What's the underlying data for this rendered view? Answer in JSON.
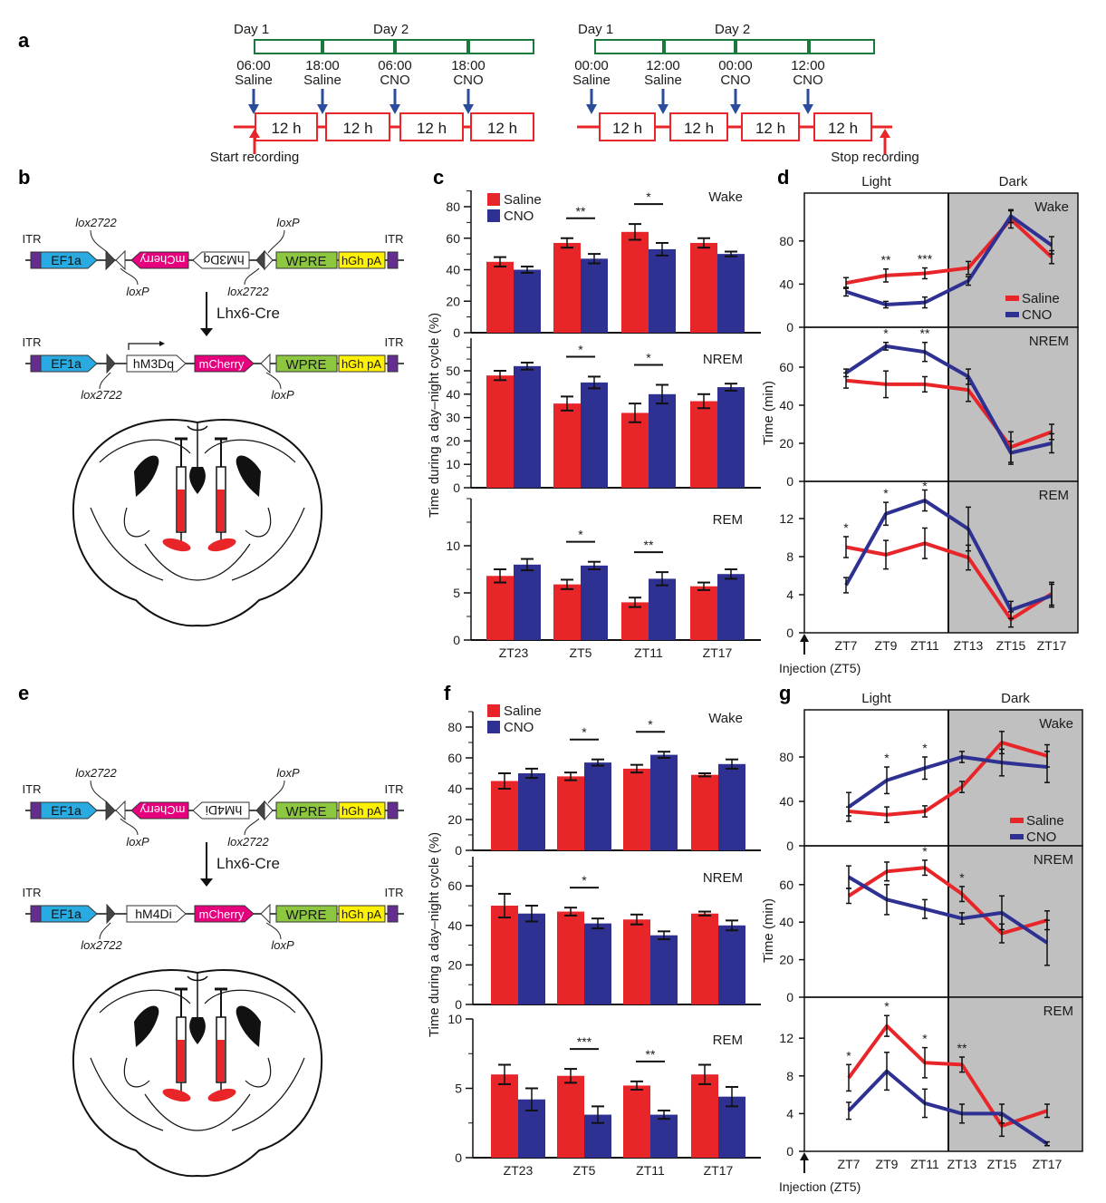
{
  "panel_letters": {
    "a": "a",
    "b": "b",
    "c": "c",
    "d": "d",
    "e": "e",
    "f": "f",
    "g": "g"
  },
  "colors": {
    "saline": "#e8262a",
    "cno": "#2e3192",
    "dark_phase": "#c0c0c0",
    "timeline_green": "#1a7a3c",
    "injection_arrow": "#2b4c9b",
    "recording": "#e8262a",
    "ef1a": "#29abe2",
    "mcherry": "#e6007e",
    "wpre": "#8dc63f",
    "hgh_pa": "#fff200",
    "itr": "#662d91"
  },
  "panel_a": {
    "left": {
      "days": [
        "Day 1",
        "Day 2"
      ],
      "injections": [
        {
          "time": "06:00",
          "drug": "Saline"
        },
        {
          "time": "18:00",
          "drug": "Saline"
        },
        {
          "time": "06:00",
          "drug": "CNO"
        },
        {
          "time": "18:00",
          "drug": "CNO"
        }
      ],
      "blocks": [
        "12 h",
        "12 h",
        "12 h",
        "12 h"
      ],
      "recording_label": "Start recording"
    },
    "right": {
      "days": [
        "Day 1",
        "Day 2"
      ],
      "injections": [
        {
          "time": "00:00",
          "drug": "Saline"
        },
        {
          "time": "12:00",
          "drug": "Saline"
        },
        {
          "time": "00:00",
          "drug": "CNO"
        },
        {
          "time": "12:00",
          "drug": "CNO"
        }
      ],
      "blocks": [
        "12 h",
        "12 h",
        "12 h",
        "12 h"
      ],
      "recording_label": "Stop recording"
    }
  },
  "panel_b": {
    "itr": "ITR",
    "ef1a": "EF1a",
    "mcherry": "mCherry",
    "receptor": "hM3Dq",
    "wpre": "WPRE",
    "hgh": "hGh pA",
    "lox2722": "lox2722",
    "loxp": "loxP",
    "cre": "Lhx6-Cre"
  },
  "panel_e": {
    "itr": "ITR",
    "ef1a": "EF1a",
    "mcherry": "mCherry",
    "receptor": "hM4Di",
    "wpre": "WPRE",
    "hgh": "hGh pA",
    "lox2722": "lox2722",
    "loxp": "loxP",
    "cre": "Lhx6-Cre"
  },
  "chart_data": [
    {
      "panel": "c",
      "type": "bar",
      "ylabel": "Time during a day–night cycle (%)",
      "categories": [
        "ZT23",
        "ZT5",
        "ZT11",
        "ZT17"
      ],
      "legend": [
        "Saline",
        "CNO"
      ],
      "legend_position": "top-left",
      "subpanels": [
        {
          "state": "Wake",
          "ylim": [
            0,
            90
          ],
          "yticks": [
            0,
            20,
            40,
            60,
            80
          ],
          "series": [
            {
              "name": "Saline",
              "values": [
                45,
                57,
                64,
                57
              ],
              "err": [
                3,
                3,
                5,
                3
              ]
            },
            {
              "name": "CNO",
              "values": [
                40,
                47,
                53,
                50
              ],
              "err": [
                2,
                3,
                4,
                1.5
              ]
            }
          ],
          "significance": [
            {
              "category": "ZT5",
              "label": "**"
            },
            {
              "category": "ZT11",
              "label": "*"
            }
          ]
        },
        {
          "state": "NREM",
          "ylim": [
            0,
            64
          ],
          "yticks": [
            0,
            10,
            20,
            30,
            40,
            50
          ],
          "series": [
            {
              "name": "Saline",
              "values": [
                48,
                36,
                32,
                37
              ],
              "err": [
                2,
                3,
                4,
                3
              ]
            },
            {
              "name": "CNO",
              "values": [
                52,
                45,
                40,
                43
              ],
              "err": [
                1.5,
                2.5,
                4,
                1.5
              ]
            }
          ],
          "significance": [
            {
              "category": "ZT5",
              "label": "*"
            },
            {
              "category": "ZT11",
              "label": "*"
            }
          ]
        },
        {
          "state": "REM",
          "ylim": [
            0,
            15
          ],
          "yticks": [
            0,
            5,
            10
          ],
          "series": [
            {
              "name": "Saline",
              "values": [
                6.8,
                5.9,
                4.0,
                5.7
              ],
              "err": [
                0.7,
                0.5,
                0.5,
                0.4
              ]
            },
            {
              "name": "CNO",
              "values": [
                8.0,
                7.9,
                6.5,
                7.0
              ],
              "err": [
                0.6,
                0.4,
                0.7,
                0.5
              ]
            }
          ],
          "significance": [
            {
              "category": "ZT5",
              "label": "*"
            },
            {
              "category": "ZT11",
              "label": "**"
            }
          ]
        }
      ]
    },
    {
      "panel": "d",
      "type": "line",
      "ylabel": "Time (min)",
      "x": [
        "ZT7",
        "ZT9",
        "ZT11",
        "ZT13",
        "ZT15",
        "ZT17"
      ],
      "phases": [
        "Light",
        "Dark"
      ],
      "annotation": "Injection (ZT5)",
      "legend": [
        "Saline",
        "CNO"
      ],
      "legend_position": "inside Wake, right",
      "subpanels": [
        {
          "state": "Wake",
          "ylim": [
            0,
            124
          ],
          "yticks": [
            0,
            40,
            80
          ],
          "series": [
            {
              "name": "Saline",
              "values": [
                41,
                48,
                50,
                55,
                100,
                65
              ],
              "err": [
                5,
                6,
                5,
                6,
                8,
                6
              ]
            },
            {
              "name": "CNO",
              "values": [
                33,
                21,
                23,
                43,
                103,
                76
              ],
              "err": [
                4,
                3,
                5,
                4,
                6,
                8
              ]
            }
          ],
          "significance": [
            {
              "x": "ZT9",
              "label": "**"
            },
            {
              "x": "ZT11",
              "label": "***"
            }
          ]
        },
        {
          "state": "NREM",
          "ylim": [
            0,
            81
          ],
          "yticks": [
            0,
            20,
            40,
            60
          ],
          "series": [
            {
              "name": "Saline",
              "values": [
                53,
                51,
                51,
                48,
                18,
                26
              ],
              "err": [
                4,
                7,
                4,
                6,
                8,
                4
              ]
            },
            {
              "name": "CNO",
              "values": [
                57,
                71,
                68,
                55,
                15,
                20
              ],
              "err": [
                2,
                2,
                5,
                4,
                6,
                5
              ]
            }
          ],
          "significance": [
            {
              "x": "ZT9",
              "label": "*"
            },
            {
              "x": "ZT11",
              "label": "**"
            }
          ]
        },
        {
          "state": "REM",
          "ylim": [
            0,
            16
          ],
          "yticks": [
            0,
            4,
            8,
            12
          ],
          "series": [
            {
              "name": "Saline",
              "values": [
                9.0,
                8.2,
                9.4,
                7.9,
                1.4,
                4.1
              ],
              "err": [
                1.1,
                1.5,
                1.6,
                1.3,
                0.8,
                1.2
              ]
            },
            {
              "name": "CNO",
              "values": [
                5.0,
                12.5,
                13.9,
                10.9,
                2.4,
                3.9
              ],
              "err": [
                0.8,
                1.2,
                1.1,
                2.3,
                0.9,
                1.2
              ]
            }
          ],
          "significance": [
            {
              "x": "ZT7",
              "label": "*"
            },
            {
              "x": "ZT9",
              "label": "*"
            },
            {
              "x": "ZT11",
              "label": "*"
            }
          ]
        }
      ]
    },
    {
      "panel": "f",
      "type": "bar",
      "ylabel": "Time during a day–night cycle (%)",
      "categories": [
        "ZT23",
        "ZT5",
        "ZT11",
        "ZT17"
      ],
      "legend": [
        "Saline",
        "CNO"
      ],
      "legend_position": "top-left",
      "subpanels": [
        {
          "state": "Wake",
          "ylim": [
            0,
            90
          ],
          "yticks": [
            0,
            20,
            40,
            60,
            80
          ],
          "series": [
            {
              "name": "Saline",
              "values": [
                45,
                48,
                53,
                49
              ],
              "err": [
                5,
                2.5,
                2.5,
                1
              ]
            },
            {
              "name": "CNO",
              "values": [
                50,
                57,
                62,
                56
              ],
              "err": [
                3,
                2,
                2,
                3
              ]
            }
          ],
          "significance": [
            {
              "category": "ZT5",
              "label": "*"
            },
            {
              "category": "ZT11",
              "label": "*"
            }
          ]
        },
        {
          "state": "NREM",
          "ylim": [
            0,
            70
          ],
          "yticks": [
            0,
            20,
            40,
            60
          ],
          "series": [
            {
              "name": "Saline",
              "values": [
                50,
                47,
                43,
                46
              ],
              "err": [
                6,
                2,
                2.5,
                1
              ]
            },
            {
              "name": "CNO",
              "values": [
                46,
                41,
                35,
                40
              ],
              "err": [
                4,
                2.5,
                2,
                2.5
              ]
            }
          ],
          "significance": [
            {
              "category": "ZT5",
              "label": "*"
            }
          ]
        },
        {
          "state": "REM",
          "ylim": [
            0,
            10
          ],
          "yticks": [
            0,
            5,
            10
          ],
          "series": [
            {
              "name": "Saline",
              "values": [
                6.0,
                5.9,
                5.2,
                6.0
              ],
              "err": [
                0.7,
                0.5,
                0.3,
                0.7
              ]
            },
            {
              "name": "CNO",
              "values": [
                4.2,
                3.1,
                3.1,
                4.4
              ],
              "err": [
                0.8,
                0.6,
                0.3,
                0.7
              ]
            }
          ],
          "significance": [
            {
              "category": "ZT5",
              "label": "***"
            },
            {
              "category": "ZT11",
              "label": "**"
            }
          ]
        }
      ]
    },
    {
      "panel": "g",
      "type": "line",
      "ylabel": "Time (min)",
      "x": [
        "ZT7",
        "ZT9",
        "ZT11",
        "ZT13",
        "ZT15",
        "ZT17"
      ],
      "phases": [
        "Light",
        "Dark"
      ],
      "annotation": "Injection (ZT5)",
      "legend": [
        "Saline",
        "CNO"
      ],
      "legend_position": "inside Wake, right",
      "subpanels": [
        {
          "state": "Wake",
          "ylim": [
            0,
            122
          ],
          "yticks": [
            0,
            40,
            80
          ],
          "series": [
            {
              "name": "Saline",
              "values": [
                31,
                28,
                31,
                53,
                93,
                81
              ],
              "err": [
                4,
                7,
                5,
                5,
                10,
                10
              ]
            },
            {
              "name": "CNO",
              "values": [
                35,
                59,
                70,
                80,
                75,
                71
              ],
              "err": [
                13,
                12,
                10,
                5,
                12,
                14
              ]
            }
          ],
          "significance": [
            {
              "x": "ZT9",
              "label": "*"
            },
            {
              "x": "ZT11",
              "label": "*"
            }
          ]
        },
        {
          "state": "NREM",
          "ylim": [
            0,
            80
          ],
          "yticks": [
            0,
            20,
            40,
            60
          ],
          "series": [
            {
              "name": "Saline",
              "values": [
                54,
                67,
                69,
                55,
                34,
                41
              ],
              "err": [
                4,
                5,
                4,
                4,
                5,
                5
              ]
            },
            {
              "name": "CNO",
              "values": [
                64,
                52,
                47,
                42,
                45,
                29
              ],
              "err": [
                6,
                8,
                5,
                3,
                9,
                12
              ]
            }
          ],
          "significance": [
            {
              "x": "ZT11",
              "label": "*"
            },
            {
              "x": "ZT13",
              "label": "*"
            }
          ]
        },
        {
          "state": "REM",
          "ylim": [
            0,
            15
          ],
          "yticks": [
            0,
            4,
            8,
            12
          ],
          "series": [
            {
              "name": "Saline",
              "values": [
                7.8,
                13.3,
                9.4,
                9.2,
                2.7,
                4.3
              ],
              "err": [
                1.4,
                1.1,
                1.6,
                0.8,
                1.1,
                0.7
              ]
            },
            {
              "name": "CNO",
              "values": [
                4.3,
                8.5,
                5.1,
                4.0,
                4.0,
                0.8
              ],
              "err": [
                0.9,
                2.0,
                1.5,
                1.0,
                1.0,
                0.2
              ]
            }
          ],
          "significance": [
            {
              "x": "ZT7",
              "label": "*"
            },
            {
              "x": "ZT9",
              "label": "*"
            },
            {
              "x": "ZT11",
              "label": "*"
            },
            {
              "x": "ZT13",
              "label": "**"
            }
          ]
        }
      ]
    }
  ]
}
